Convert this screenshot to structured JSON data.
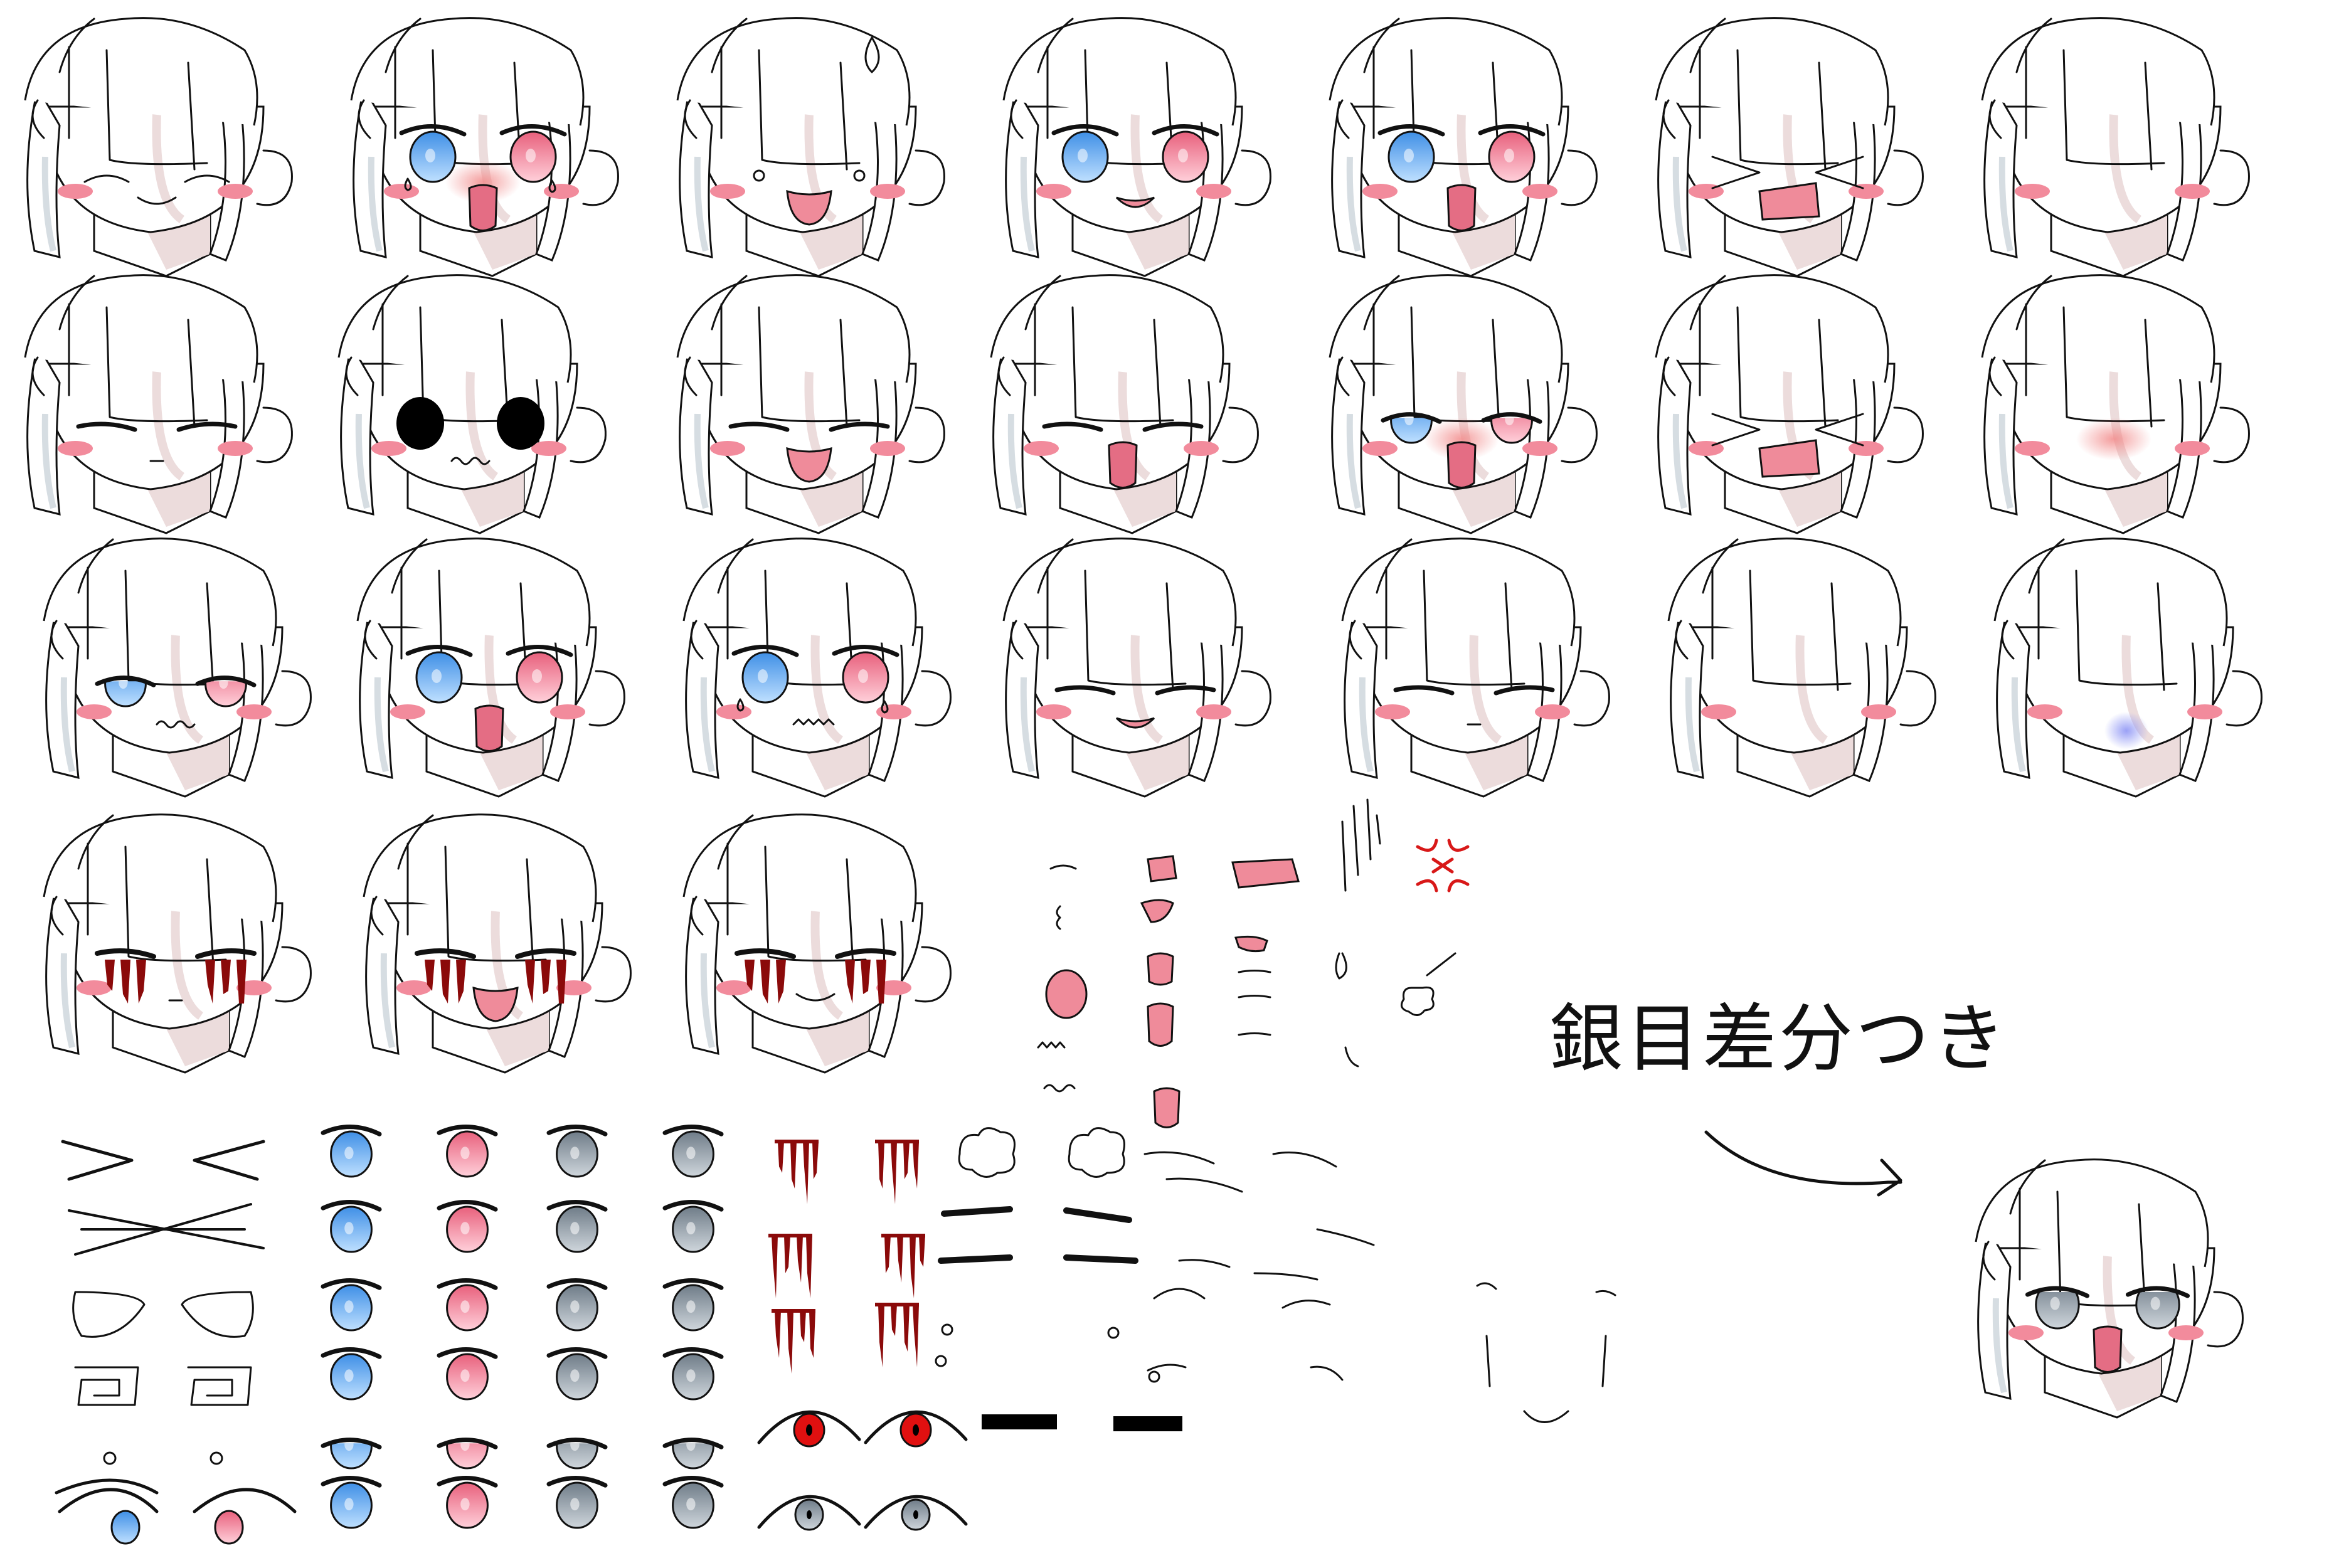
{
  "sheet": {
    "caption": "銀目差分つき",
    "background": "#ffffff"
  },
  "palette": {
    "line": "#111111",
    "hair_shade": "#d6dde2",
    "neck_shade": "#ecdcdc",
    "blush": "#f28b9c",
    "blush_soft": "#f7a8ad",
    "eye_blue": "#5aa6f0",
    "eye_pink": "#f07a94",
    "eye_silver": "#8e9aa4",
    "mouth": "#ef8b9a",
    "tongue": "#e46d84",
    "blood": "#8b0a0a",
    "anger": "#d81818",
    "red_eye": "#e01010",
    "shadow_blue": "#9fa6f5"
  },
  "faces": [
    {
      "eyes": "closed-smile",
      "mouth": "smile-line",
      "blush": true
    },
    {
      "eyes": "heterochromia-teary",
      "mouth": "tongue",
      "blush": true,
      "extra": "cheek-glow"
    },
    {
      "eyes": "dots",
      "mouth": "open-happy",
      "blush": true,
      "extra": "sweat"
    },
    {
      "eyes": "heterochromia",
      "mouth": "cat-smile",
      "blush": true
    },
    {
      "eyes": "heterochromia",
      "mouth": "tongue",
      "blush": true
    },
    {
      "eyes": "x-squint",
      "mouth": "open-rect",
      "blush": true
    },
    {
      "eyes": "none",
      "mouth": "none",
      "blush": true
    },
    {
      "eyes": "closed-lines",
      "mouth": "small",
      "blush": true
    },
    {
      "eyes": "black",
      "mouth": "wavy",
      "blush": true
    },
    {
      "eyes": "closed-lines",
      "mouth": "open-happy",
      "blush": true
    },
    {
      "eyes": "closed-lines",
      "mouth": "tongue",
      "blush": true
    },
    {
      "eyes": "heterochromia-half",
      "mouth": "tongue",
      "blush": true,
      "extra": "cheek-glow"
    },
    {
      "eyes": "x-squint",
      "mouth": "open-rect",
      "blush": true
    },
    {
      "eyes": "none",
      "mouth": "none",
      "blush": true,
      "extra": "cheek-glow"
    },
    {
      "eyes": "heterochromia-half",
      "mouth": "wavy",
      "blush": true
    },
    {
      "eyes": "heterochromia",
      "mouth": "tongue",
      "blush": true
    },
    {
      "eyes": "heterochromia-teary",
      "mouth": "zigzag",
      "blush": true
    },
    {
      "eyes": "closed-lash",
      "mouth": "cat-smile",
      "blush": true
    },
    {
      "eyes": "closed-lines",
      "mouth": "small",
      "blush": true
    },
    {
      "eyes": "none",
      "mouth": "none",
      "blush": true
    },
    {
      "eyes": "none",
      "mouth": "none",
      "blush": true,
      "extra": "blue-glow"
    },
    {
      "eyes": "blood",
      "mouth": "small",
      "blush": true
    },
    {
      "eyes": "blood",
      "mouth": "open-happy",
      "blush": true
    },
    {
      "eyes": "blood",
      "mouth": "smile-line",
      "blush": true
    },
    {
      "eyes": "silver",
      "mouth": "tongue",
      "blush": true
    }
  ],
  "eye_parts": [
    "angled-right",
    "angled-left",
    "cross",
    "almond",
    "spiral",
    "dot",
    "blue",
    "pink",
    "silver",
    "silver-light"
  ],
  "mouth_parts": [
    "small",
    "rect",
    "open",
    "tongue",
    "wavy",
    "zigzag"
  ],
  "symbols": [
    "anger",
    "speed-lines",
    "steam",
    "drop",
    "blood",
    "red-eye",
    "bar"
  ]
}
